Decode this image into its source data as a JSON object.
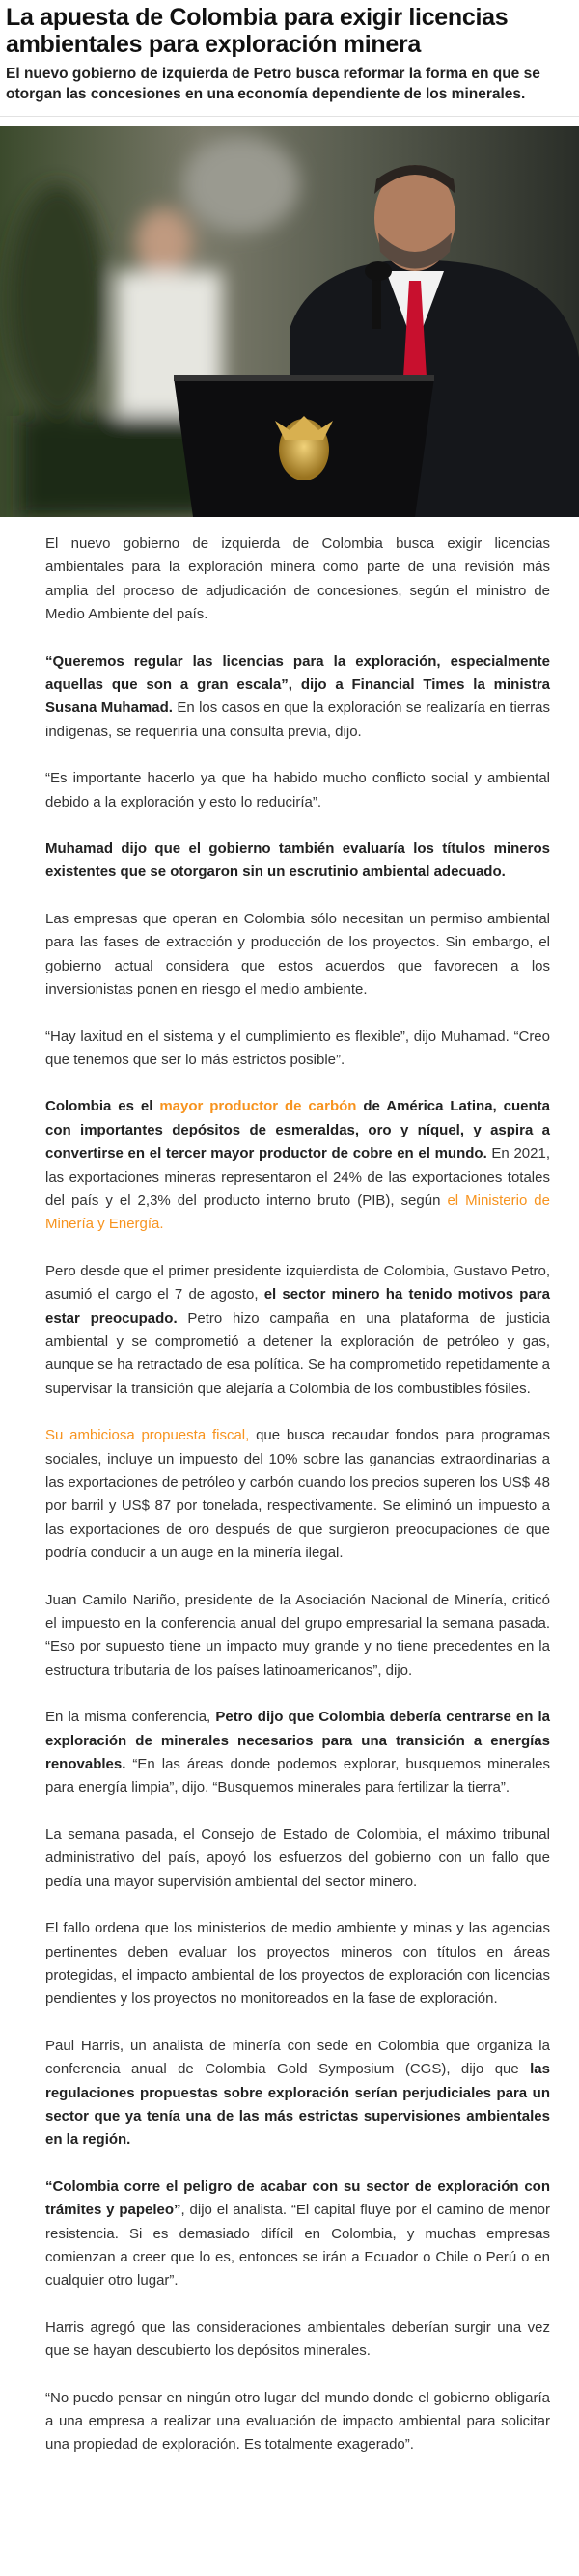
{
  "article": {
    "title": "La apuesta de Colombia para exigir licencias ambientales para exploración minera",
    "subtitle": "El nuevo gobierno de izquierda de Petro busca reformar la forma en que se otorgan las concesiones en una economía dependiente de los minerales.",
    "link_color": "#f7931e",
    "paragraphs": [
      [
        {
          "t": "El nuevo gobierno de izquierda de Colombia busca exigir licencias ambientales para la exploración minera como parte de una revisión más amplia del proceso de adjudicación de concesiones, según el ministro de Medio Ambiente del país."
        }
      ],
      [
        {
          "t": "“Queremos regular las licencias para la exploración, especialmente aquellas que son a gran escala”, dijo a Financial Times la ministra Susana Muhamad.",
          "b": true
        },
        {
          "t": " En los casos en que la exploración se realizaría en tierras indígenas, se requeriría una consulta previa, dijo."
        }
      ],
      [
        {
          "t": "“Es importante hacerlo ya que ha habido mucho conflicto social y ambiental debido a la exploración y esto lo reduciría”."
        }
      ],
      [
        {
          "t": "Muhamad dijo que el gobierno también evaluaría los títulos mineros existentes que se otorgaron sin un escrutinio ambiental adecuado.",
          "b": true
        }
      ],
      [
        {
          "t": "Las empresas que operan en Colombia sólo necesitan un permiso ambiental para las fases de extracción y producción de los proyectos. Sin embargo, el gobierno actual considera que estos acuerdos que favorecen a los inversionistas ponen en riesgo el medio ambiente."
        }
      ],
      [
        {
          "t": "“Hay laxitud en el sistema y el cumplimiento es flexible”, dijo Muhamad. “Creo que tenemos que ser lo más estrictos posible”."
        }
      ],
      [
        {
          "t": "Colombia es el ",
          "b": true
        },
        {
          "t": "mayor productor de carbón",
          "b": true,
          "link": true
        },
        {
          "t": " de América Latina, cuenta con importantes depósitos de esmeraldas, oro y níquel, y aspira a convertirse en el tercer mayor productor de cobre en el mundo.",
          "b": true
        },
        {
          "t": " En 2021, las exportaciones mineras representaron el 24% de las exportaciones totales del país y el 2,3% del producto interno bruto (PIB), según "
        },
        {
          "t": "el Ministerio de Minería y Energía.",
          "link": true
        }
      ],
      [
        {
          "t": "Pero desde que el primer presidente izquierdista de Colombia, Gustavo Petro, asumió el cargo el 7 de agosto, "
        },
        {
          "t": "el sector minero ha tenido motivos para estar preocupado.",
          "b": true
        },
        {
          "t": " Petro hizo campaña en una plataforma de justicia ambiental y se comprometió a detener la exploración de petróleo y gas, aunque se ha retractado de esa política. Se ha comprometido repetidamente a supervisar la transición que alejaría a Colombia de los combustibles fósiles."
        }
      ],
      [
        {
          "t": "Su ambiciosa propuesta fiscal,",
          "link": true
        },
        {
          "t": " que busca recaudar fondos para programas sociales, incluye un impuesto del 10% sobre las ganancias extraordinarias a las exportaciones de petróleo y carbón cuando los precios superen los US$ 48 por barril y US$ 87 por tonelada, respectivamente. Se eliminó un impuesto a las exportaciones de oro después de que surgieron preocupaciones de que podría conducir a un auge en la minería ilegal."
        }
      ],
      [
        {
          "t": "Juan Camilo Nariño, presidente de la Asociación Nacional de Minería, criticó el impuesto en la conferencia anual del grupo empresarial la semana pasada. “Eso por supuesto tiene un impacto muy grande y no tiene precedentes en la estructura tributaria de los países latinoamericanos”, dijo."
        }
      ],
      [
        {
          "t": "En la misma conferencia, "
        },
        {
          "t": "Petro dijo que Colombia debería centrarse en la exploración de minerales necesarios para una transición a energías renovables.",
          "b": true
        },
        {
          "t": " “En las áreas donde podemos explorar, busquemos minerales para energía limpia”, dijo. “Busquemos minerales para fertilizar la tierra”."
        }
      ],
      [
        {
          "t": "La semana pasada, el Consejo de Estado de Colombia, el máximo tribunal administrativo del país, apoyó los esfuerzos del gobierno con un fallo que pedía una mayor supervisión ambiental del sector minero."
        }
      ],
      [
        {
          "t": "El fallo ordena que los ministerios de medio ambiente y minas y las agencias pertinentes deben evaluar los proyectos mineros con títulos en áreas protegidas, el impacto ambiental de los proyectos de exploración con licencias pendientes y los proyectos no monitoreados en la fase de exploración."
        }
      ],
      [
        {
          "t": "Paul Harris, un analista de minería con sede en Colombia que organiza la conferencia anual de Colombia Gold Symposium (CGS), dijo que "
        },
        {
          "t": "las regulaciones propuestas sobre exploración serían perjudiciales para un sector que ya tenía una de las más estrictas supervisiones ambientales en la región.",
          "b": true
        }
      ],
      [
        {
          "t": "“Colombia corre el peligro de acabar con su sector de exploración con trámites y papeleo”",
          "b": true
        },
        {
          "t": ", dijo el analista. “El capital fluye por el camino de menor resistencia. Si es demasiado difícil en Colombia, y muchas empresas comienzan a creer que lo es, entonces se irán a Ecuador o Chile o Perú o en cualquier otro lugar”."
        }
      ],
      [
        {
          "t": "Harris agregó que las consideraciones ambientales deberían surgir una vez que se hayan descubierto los depósitos minerales."
        }
      ],
      [
        {
          "t": "“No puedo pensar en ningún otro lugar del mundo donde el gobierno obligaría a una empresa a realizar una evaluación de impacto ambiental para solicitar una propiedad de exploración. Es totalmente exagerado”."
        }
      ]
    ]
  }
}
